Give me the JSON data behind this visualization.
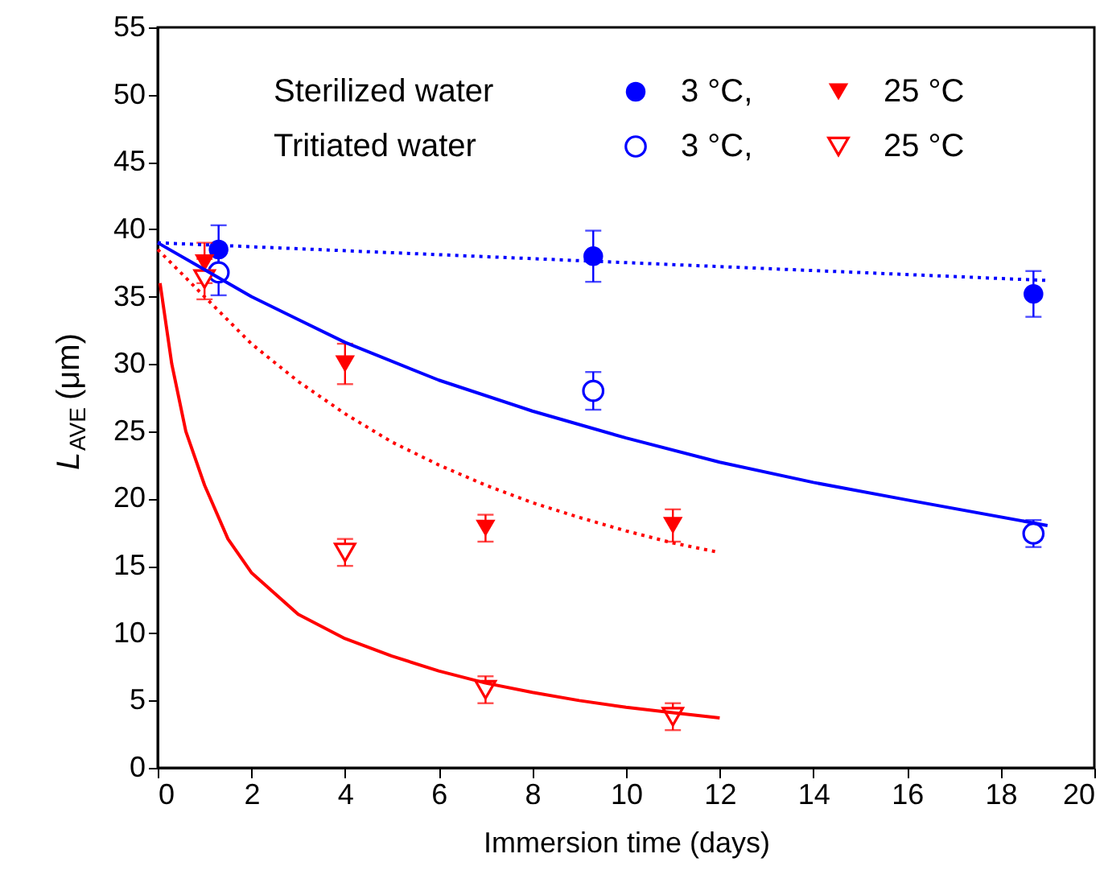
{
  "chart_data": {
    "type": "scatter",
    "xlabel": "Immersion time (days)",
    "ylabel": "L$_{AVE}$ (μm)",
    "xlim": [
      0,
      20
    ],
    "ylim": [
      0,
      55
    ],
    "xticks": [
      0,
      2,
      4,
      6,
      8,
      10,
      12,
      14,
      16,
      18,
      20
    ],
    "yticks": [
      0,
      5,
      10,
      15,
      20,
      25,
      30,
      35,
      40,
      45,
      50,
      55
    ],
    "grid": false,
    "legend": "top",
    "annotations": [
      "Sterilized water",
      "Tritiated water"
    ],
    "series": [
      {
        "name": "3 °C,",
        "color": "#0000ff",
        "marker": "circle",
        "x": [
          1.3,
          9.3,
          18.7
        ],
        "values": [
          38.5,
          38.0,
          35.2
        ],
        "errors": [
          1.8,
          1.9,
          1.7
        ]
      },
      {
        "name": "25 °C",
        "color": "#ff0000",
        "marker": "triangle",
        "x": [
          1,
          4,
          7,
          11
        ],
        "values": [
          37.5,
          30.0,
          17.8,
          18.0
        ],
        "errors": [
          1.5,
          1.5,
          1.0,
          1.2
        ]
      },
      {
        "name": "3 °C,",
        "color": "#0000ff",
        "marker": "circle",
        "x": [
          1.3,
          9.3,
          18.7
        ],
        "values": [
          36.8,
          28.0,
          17.4
        ],
        "errors": [
          1.7,
          1.4,
          1.0
        ]
      },
      {
        "name": "25 °C",
        "color": "#ff0000",
        "marker": "triangle",
        "x": [
          1,
          4,
          7,
          11
        ],
        "values": [
          36.3,
          16.0,
          5.8,
          3.8
        ],
        "errors": [
          1.5,
          1.0,
          1.0,
          1.0
        ]
      },
      {
        "type": "line",
        "color": "#0000ff",
        "line_style": "dotted",
        "x": [
          0,
          19
        ],
        "values": [
          39.0,
          36.2
        ]
      },
      {
        "type": "line",
        "color": "#0000ff",
        "line_style": "solid",
        "x": [
          0,
          1,
          2,
          3,
          4,
          6,
          8,
          10,
          12,
          14,
          16,
          19
        ],
        "values": [
          39.0,
          37.0,
          35.0,
          33.3,
          31.6,
          28.8,
          26.5,
          24.5,
          22.7,
          21.2,
          19.9,
          18.0
        ]
      },
      {
        "type": "line",
        "color": "#ff0000",
        "line_style": "dotted",
        "x": [
          0,
          1,
          2,
          3,
          4,
          5,
          6,
          7,
          8,
          9,
          10,
          11,
          12
        ],
        "values": [
          38.5,
          35.0,
          31.5,
          28.7,
          26.3,
          24.2,
          22.5,
          21.0,
          19.7,
          18.6,
          17.6,
          16.7,
          16.0
        ]
      },
      {
        "type": "line",
        "color": "#ff0000",
        "line_style": "solid",
        "x": [
          0.05,
          0.3,
          0.6,
          1,
          1.5,
          2,
          3,
          4,
          5,
          6,
          7,
          8,
          9,
          10,
          11,
          12
        ],
        "values": [
          36.0,
          30.0,
          25.0,
          21.0,
          17.0,
          14.5,
          11.4,
          9.6,
          8.3,
          7.2,
          6.3,
          5.6,
          5.0,
          4.5,
          4.1,
          3.7
        ]
      }
    ]
  }
}
